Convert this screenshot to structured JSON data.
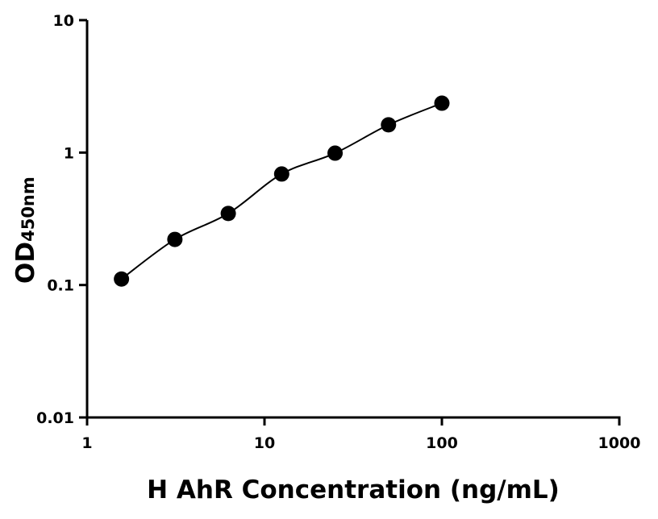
{
  "chart_data": {
    "type": "scatter",
    "title": "",
    "xlabel": "H AhR Concentration (ng/mL)",
    "ylabel": "OD",
    "ylabel_subscript": "450nm",
    "x_scale": "log",
    "y_scale": "log",
    "xlim": [
      1,
      1000
    ],
    "ylim": [
      0.01,
      10
    ],
    "x_ticks": [
      "1",
      "10",
      "100",
      "1000"
    ],
    "y_ticks": [
      "0.01",
      "0.1",
      "1",
      "10"
    ],
    "grid": false,
    "fit_line": true,
    "series": [
      {
        "x": [
          1.5625,
          3.125,
          6.25,
          12.5,
          25,
          50,
          100
        ],
        "y": [
          0.111,
          0.221,
          0.347,
          0.689,
          0.99,
          1.62,
          2.36
        ]
      }
    ],
    "colors": {
      "marker": "#000000",
      "line": "#000000"
    }
  }
}
